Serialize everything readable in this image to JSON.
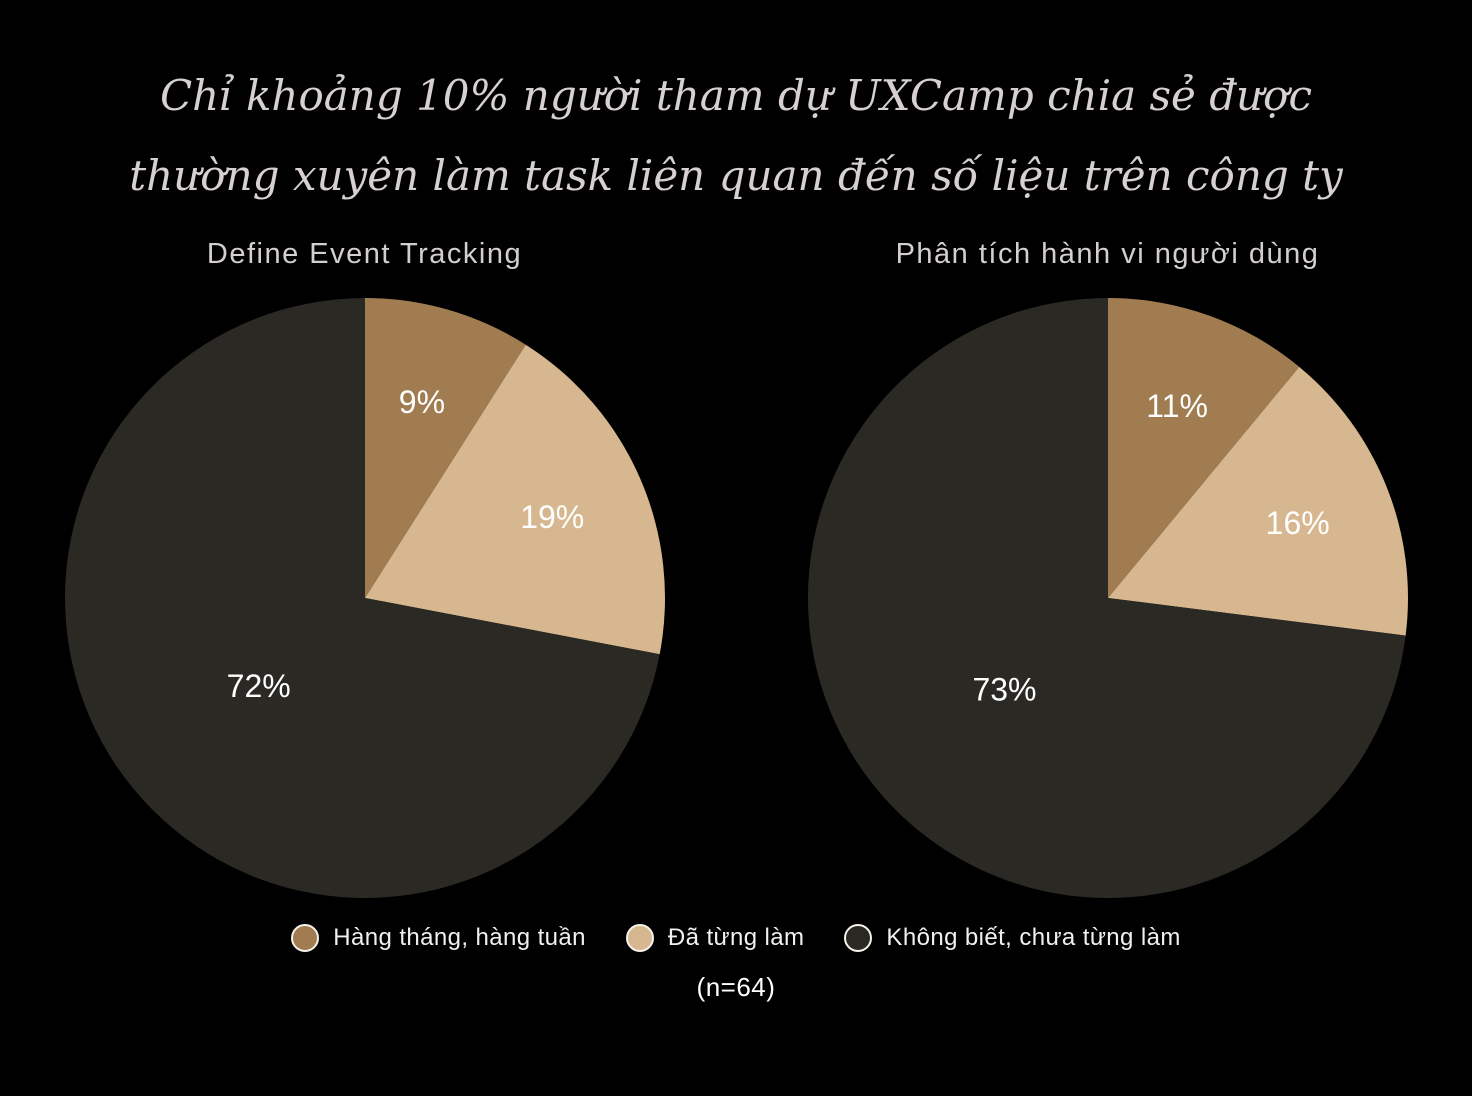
{
  "title": {
    "line1": "Chỉ khoảng 10% người tham dự UXCamp chia sẻ được",
    "line2": "thường xuyên làm task liên quan đến số liệu trên công ty"
  },
  "colors": {
    "background": "#000000",
    "title_text": "#D6D0D0",
    "chart_title_text": "#D4CFCF",
    "percent_label_text": "#FFFFFF",
    "brown": "#A07C50",
    "tan": "#D6B78F",
    "dark": "#2B2923"
  },
  "legend": {
    "items": [
      {
        "label": "Hàng tháng, hàng tuần",
        "color": "#A07C50"
      },
      {
        "label": "Đã từng làm",
        "color": "#D6B78F"
      },
      {
        "label": "Không biết, chưa từng làm",
        "color": "#2B2923"
      }
    ]
  },
  "footnote": "(n=64)",
  "chart_data": [
    {
      "type": "pie",
      "title": "Define Event Tracking",
      "categories": [
        "Hàng tháng, hàng tuần",
        "Đã từng làm",
        "Không biết, chưa từng làm"
      ],
      "values": [
        9,
        19,
        72
      ],
      "labels": [
        "9%",
        "19%",
        "72%"
      ],
      "colors": [
        "#A07C50",
        "#D6B78F",
        "#2B2923"
      ],
      "start_angle_deg": 0,
      "direction": "clockwise",
      "legend_position": "bottom-shared",
      "sample_size": 64
    },
    {
      "type": "pie",
      "title": "Phân tích hành vi người dùng",
      "categories": [
        "Hàng tháng, hàng tuần",
        "Đã từng làm",
        "Không biết, chưa từng làm"
      ],
      "values": [
        11,
        16,
        73
      ],
      "labels": [
        "11%",
        "16%",
        "73%"
      ],
      "colors": [
        "#A07C50",
        "#D6B78F",
        "#2B2923"
      ],
      "start_angle_deg": 0,
      "direction": "clockwise",
      "legend_position": "bottom-shared",
      "sample_size": 64
    }
  ]
}
